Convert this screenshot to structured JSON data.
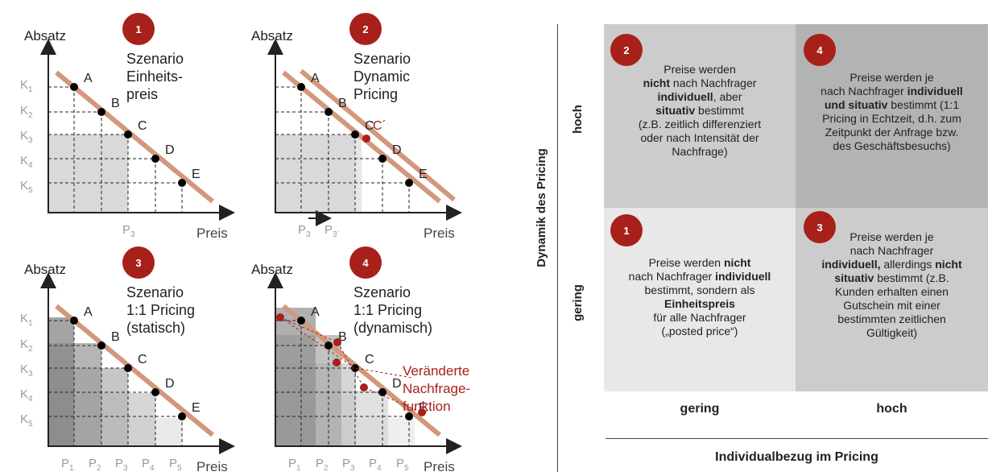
{
  "panels": [
    {
      "badge": "1",
      "absatz": "Absatz",
      "preis": "Preis",
      "title": [
        "Szenario",
        "Einheits-",
        "preis"
      ]
    },
    {
      "badge": "2",
      "absatz": "Absatz",
      "preis": "Preis",
      "title": [
        "Szenario",
        "Dynamic",
        "Pricing"
      ]
    },
    {
      "badge": "3",
      "absatz": "Absatz",
      "preis": "Preis",
      "title": [
        "Szenario",
        "1:1 Pricing",
        "(statisch)"
      ]
    },
    {
      "badge": "4",
      "absatz": "Absatz",
      "preis": "Preis",
      "title": [
        "Szenario",
        "1:1 Pricing",
        "(dynamisch)"
      ]
    }
  ],
  "point_labels": [
    "A",
    "B",
    "C",
    "D",
    "E"
  ],
  "k_labels": [
    "K",
    "K",
    "K",
    "K",
    "K"
  ],
  "k_subs": [
    "1",
    "2",
    "3",
    "4",
    "5"
  ],
  "p_labels": [
    "P",
    "P",
    "P",
    "P",
    "P"
  ],
  "p_subs": [
    "1",
    "2",
    "3",
    "4",
    "5"
  ],
  "p3": {
    "P": "P",
    "sub": "3"
  },
  "p3prime": {
    "P": "P",
    "sub": "3´"
  },
  "c_prime": "C´",
  "annotation": [
    "Veränderte",
    "Nachfrage-",
    "funktion"
  ],
  "matrix": {
    "y_axis_title": "Dynamik des Pricing",
    "x_axis_title": "Individualbezug im Pricing",
    "y_high": "hoch",
    "y_low": "gering",
    "x_low": "gering",
    "x_high": "hoch",
    "cells": {
      "c2": {
        "badge": "2",
        "lines": [
          [
            "Preise werden"
          ],
          [
            {
              "b": "nicht "
            },
            {
              "t": " nach Nachfrager"
            }
          ],
          [
            {
              "b": "individuell"
            },
            {
              "t": ", aber"
            }
          ],
          [
            {
              "b": "situativ"
            },
            {
              "t": " bestimmt"
            }
          ],
          [
            "(z.B. zeitlich differenziert"
          ],
          [
            "oder nach Intensität der"
          ],
          [
            "Nachfrage)"
          ]
        ]
      },
      "c4": {
        "badge": "4",
        "lines": [
          [
            "Preise werden je"
          ],
          [
            {
              "t": "nach Nachfrager "
            },
            {
              "b": "individuell"
            }
          ],
          [
            {
              "b": "und situativ"
            },
            {
              "t": " bestimmt (1:1"
            }
          ],
          [
            "Pricing in Echtzeit, d.h. zum"
          ],
          [
            "Zeitpunkt der Anfrage bzw."
          ],
          [
            "des Geschäftsbesuchs)"
          ]
        ]
      },
      "c1": {
        "badge": "1",
        "lines": [
          [
            {
              "t": "Preise werden "
            },
            {
              "b": "nicht"
            }
          ],
          [
            {
              "t": "nach Nachfrager "
            },
            {
              "b": "individuell"
            }
          ],
          [
            "bestimmt, sondern als"
          ],
          [
            {
              "b": "Einheitspreis"
            }
          ],
          [
            "für alle Nachfrager"
          ],
          [
            "(„posted price“)"
          ]
        ]
      },
      "c3": {
        "badge": "3",
        "lines": [
          [
            "Preise werden je"
          ],
          [
            "nach Nachfrager"
          ],
          [
            {
              "b": "individuell,"
            },
            {
              "t": " allerdings "
            },
            {
              "b": "nicht"
            }
          ],
          [
            {
              "b": "situativ"
            },
            {
              "t": "  bestimmt (z.B."
            }
          ],
          [
            "Kunden erhalten einen"
          ],
          [
            "Gutschein mit einer"
          ],
          [
            "bestimmten zeitlichen"
          ],
          [
            "Gültigkeit)"
          ]
        ]
      }
    }
  },
  "colors": {
    "accent": "#a8201a",
    "line": "#d2977c",
    "cell_dark": "#b3b3b3",
    "cell_mid": "#cccccc",
    "cell_light": "#e8e8e8"
  }
}
